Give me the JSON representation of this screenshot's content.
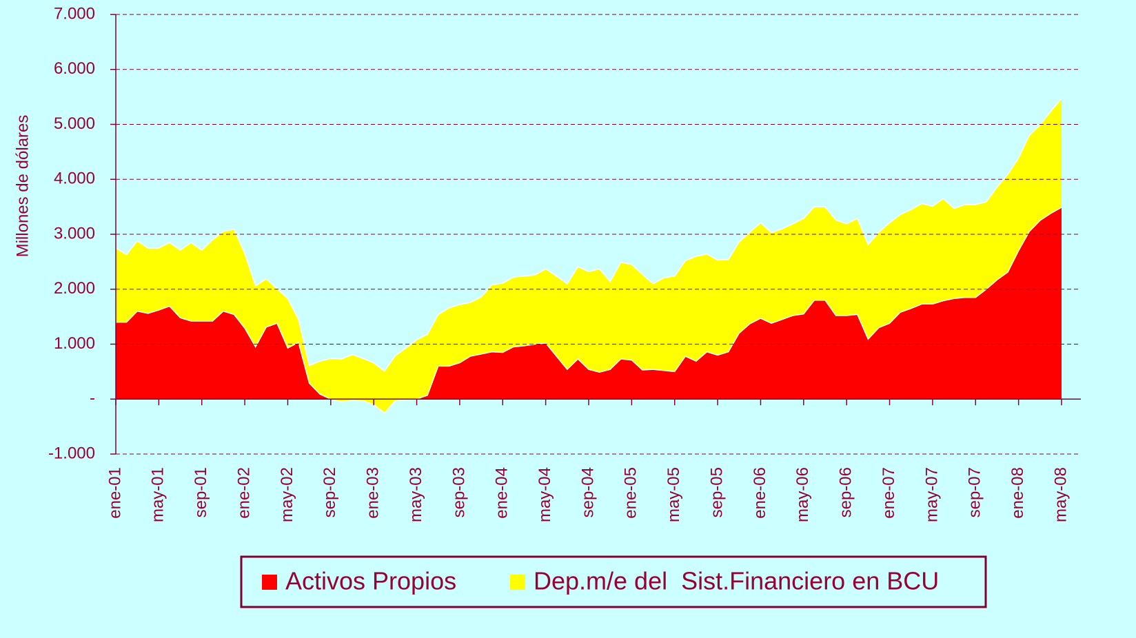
{
  "chart_data": {
    "type": "stacked_area",
    "y_axis_label": "Millones de dólares",
    "categories": [
      "ene-01",
      null,
      null,
      null,
      "may-01",
      null,
      null,
      null,
      "sep-01",
      null,
      null,
      null,
      "ene-02",
      null,
      null,
      null,
      "may-02",
      null,
      null,
      null,
      "sep-02",
      null,
      null,
      null,
      "ene-03",
      null,
      null,
      null,
      "may-03",
      null,
      null,
      null,
      "sep-03",
      null,
      null,
      null,
      "ene-04",
      null,
      null,
      null,
      "may-04",
      null,
      null,
      null,
      "sep-04",
      null,
      null,
      null,
      "ene-05",
      null,
      null,
      null,
      "may-05",
      null,
      null,
      null,
      "sep-05",
      null,
      null,
      null,
      "ene-06",
      null,
      null,
      null,
      "may-06",
      null,
      null,
      null,
      "sep-06",
      null,
      null,
      null,
      "ene-07",
      null,
      null,
      null,
      "may-07",
      null,
      null,
      null,
      "sep-07",
      null,
      null,
      null,
      "ene-08",
      null,
      null,
      null,
      "may-08"
    ],
    "series": [
      {
        "name": "Activos Propios",
        "color": "#ff0000",
        "values": [
          1400,
          1400,
          1600,
          1560,
          1620,
          1690,
          1480,
          1420,
          1420,
          1420,
          1600,
          1540,
          1290,
          950,
          1310,
          1380,
          930,
          1030,
          290,
          90,
          0,
          -50,
          -20,
          -30,
          -100,
          -250,
          -30,
          -10,
          0,
          70,
          600,
          600,
          660,
          780,
          820,
          860,
          850,
          950,
          970,
          1000,
          1020,
          780,
          540,
          730,
          540,
          490,
          540,
          730,
          710,
          530,
          540,
          520,
          500,
          780,
          690,
          860,
          800,
          860,
          1200,
          1370,
          1470,
          1380,
          1450,
          1520,
          1550,
          1800,
          1800,
          1520,
          1520,
          1540,
          1090,
          1300,
          1380,
          1580,
          1650,
          1730,
          1730,
          1790,
          1830,
          1850,
          1850,
          2000,
          2170,
          2310,
          2700,
          3050,
          3250,
          3380,
          3490
        ]
      },
      {
        "name": "Dep.m/e del  Sist.Financiero en BCU",
        "color": "#ffff00",
        "values": [
          1350,
          1230,
          1280,
          1190,
          1130,
          1160,
          1230,
          1430,
          1290,
          1480,
          1450,
          1550,
          1360,
          1110,
          880,
          630,
          900,
          420,
          320,
          600,
          740,
          780,
          830,
          770,
          760,
          760,
          820,
          940,
          1080,
          1110,
          940,
          1060,
          1060,
          980,
          1040,
          1220,
          1260,
          1270,
          1270,
          1260,
          1350,
          1460,
          1560,
          1680,
          1780,
          1880,
          1600,
          1760,
          1740,
          1740,
          1560,
          1690,
          1740,
          1740,
          1910,
          1780,
          1730,
          1680,
          1660,
          1670,
          1740,
          1650,
          1650,
          1670,
          1740,
          1700,
          1700,
          1740,
          1670,
          1750,
          1720,
          1740,
          1830,
          1780,
          1800,
          1830,
          1780,
          1860,
          1640,
          1690,
          1690,
          1590,
          1690,
          1780,
          1690,
          1750,
          1740,
          1860,
          1980
        ]
      }
    ],
    "ylim": [
      -1000,
      7000
    ],
    "yticks": [
      {
        "value": -1000,
        "label": "-1.000"
      },
      {
        "value": 0,
        "label": "-"
      },
      {
        "value": 1000,
        "label": "1.000"
      },
      {
        "value": 2000,
        "label": "2.000"
      },
      {
        "value": 3000,
        "label": "3.000"
      },
      {
        "value": 4000,
        "label": "4.000"
      },
      {
        "value": 5000,
        "label": "5.000"
      },
      {
        "value": 6000,
        "label": "6.000"
      },
      {
        "value": 7000,
        "label": "7.000"
      }
    ],
    "grid": true
  }
}
